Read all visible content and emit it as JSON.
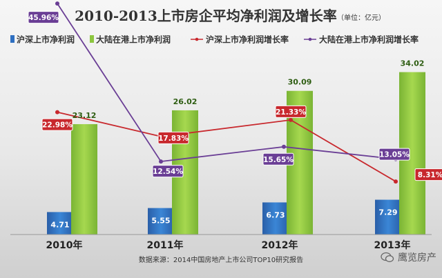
{
  "chart_data": {
    "type": "bar",
    "title": "2010-2013上市房企平均净利润及增长率",
    "unit": "（单位：亿元）",
    "categories": [
      "2010年",
      "2011年",
      "2012年",
      "2013年"
    ],
    "bar_series": [
      {
        "name": "沪深上市净利润",
        "values": [
          4.71,
          5.55,
          6.73,
          7.29
        ],
        "labels": [
          "4.71",
          "5.55",
          "6.73",
          "7.29"
        ],
        "color": "#2e6fc1"
      },
      {
        "name": "大陆在港上市净利润",
        "values": [
          23.12,
          26.02,
          30.09,
          34.02
        ],
        "labels": [
          "23.12",
          "26.02",
          "30.09",
          "34.02"
        ],
        "color": "#8cc63f"
      }
    ],
    "line_series": [
      {
        "name": "沪深上市净利润增长率",
        "values": [
          22.98,
          17.83,
          21.33,
          8.31
        ],
        "labels": [
          "22.98%",
          "17.83%",
          "21.33%",
          "8.31%"
        ],
        "color": "#c8282d"
      },
      {
        "name": "大陆在港上市净利润增长率",
        "values": [
          45.96,
          12.54,
          15.65,
          13.05
        ],
        "labels": [
          "45.96%",
          "12.54%",
          "15.65%",
          "13.05%"
        ],
        "color": "#6a3e95"
      }
    ],
    "bar_axis_range": [
      0,
      38
    ],
    "line_axis_range": [
      0,
      55
    ],
    "legend_position": "top",
    "grid": false
  },
  "source": "数据来源：2014中国房地产上市公司TOP10研究报告",
  "watermark": "鹰览房产"
}
